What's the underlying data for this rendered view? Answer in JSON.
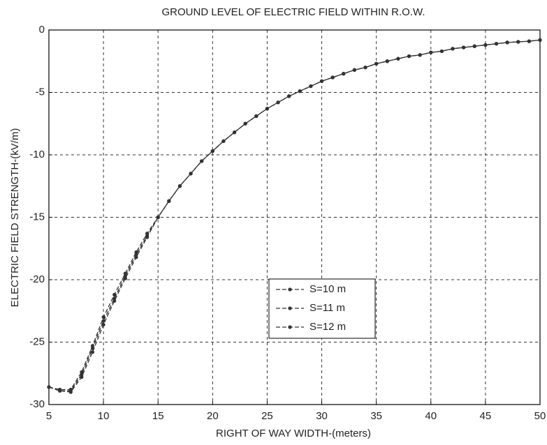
{
  "chart_data": {
    "type": "line",
    "title": "GROUND LEVEL OF ELECTRIC FIELD WITHIN R.O.W.",
    "x_label": "RIGHT OF WAY WIDTH-(meters)",
    "y_label": "ELECTRIC FIELD STRENGTH-(kV/m)",
    "x": [
      5,
      6,
      7,
      8,
      9,
      10,
      11,
      12,
      13,
      14,
      15,
      16,
      17,
      18,
      19,
      20,
      21,
      22,
      23,
      24,
      25,
      26,
      27,
      28,
      29,
      30,
      31,
      32,
      33,
      34,
      35,
      36,
      37,
      38,
      39,
      40,
      41,
      42,
      43,
      44,
      45,
      46,
      47,
      48,
      49,
      50
    ],
    "series": [
      {
        "name": "S=10 m",
        "color": "#333333",
        "values": [
          -28.6,
          -28.8,
          -28.8,
          -27.4,
          -25.3,
          -23.0,
          -21.2,
          -19.5,
          -17.8,
          -16.3,
          -15.0,
          -13.7,
          -12.5,
          -11.5,
          -10.5,
          -9.7,
          -8.9,
          -8.2,
          -7.5,
          -6.9,
          -6.3,
          -5.8,
          -5.3,
          -4.9,
          -4.5,
          -4.1,
          -3.8,
          -3.5,
          -3.2,
          -3.0,
          -2.7,
          -2.5,
          -2.3,
          -2.1,
          -2.0,
          -1.8,
          -1.7,
          -1.5,
          -1.4,
          -1.3,
          -1.2,
          -1.1,
          -1.0,
          -0.95,
          -0.9,
          -0.8
        ]
      },
      {
        "name": "S=11 m",
        "color": "#333333",
        "values": [
          -28.6,
          -28.9,
          -28.9,
          -27.6,
          -25.5,
          -23.3,
          -21.5,
          -19.7,
          -18.0,
          -16.5,
          -15.0,
          -13.7,
          -12.5,
          -11.5,
          -10.5,
          -9.7,
          -8.9,
          -8.2,
          -7.5,
          -6.9,
          -6.3,
          -5.8,
          -5.3,
          -4.9,
          -4.5,
          -4.1,
          -3.8,
          -3.5,
          -3.2,
          -3.0,
          -2.7,
          -2.5,
          -2.3,
          -2.1,
          -2.0,
          -1.8,
          -1.7,
          -1.5,
          -1.4,
          -1.3,
          -1.2,
          -1.1,
          -1.0,
          -0.95,
          -0.9,
          -0.8
        ]
      },
      {
        "name": "S=12 m",
        "color": "#333333",
        "values": [
          -28.6,
          -28.9,
          -29.0,
          -27.8,
          -25.8,
          -23.6,
          -21.7,
          -19.9,
          -18.2,
          -16.6,
          -15.0,
          -13.7,
          -12.5,
          -11.5,
          -10.5,
          -9.7,
          -8.9,
          -8.2,
          -7.5,
          -6.9,
          -6.3,
          -5.8,
          -5.3,
          -4.9,
          -4.5,
          -4.1,
          -3.8,
          -3.5,
          -3.2,
          -3.0,
          -2.7,
          -2.5,
          -2.3,
          -2.1,
          -2.0,
          -1.8,
          -1.7,
          -1.5,
          -1.4,
          -1.3,
          -1.2,
          -1.1,
          -1.0,
          -0.95,
          -0.9,
          -0.8
        ]
      }
    ],
    "xlim": [
      5,
      50
    ],
    "xticks": [
      5,
      10,
      15,
      20,
      25,
      30,
      35,
      40,
      45,
      50
    ],
    "ylim": [
      -30,
      0
    ],
    "yticks": [
      -30,
      -25,
      -20,
      -15,
      -10,
      -5,
      0
    ],
    "grid": true,
    "line_style": "dashed",
    "legend": "lower center"
  }
}
